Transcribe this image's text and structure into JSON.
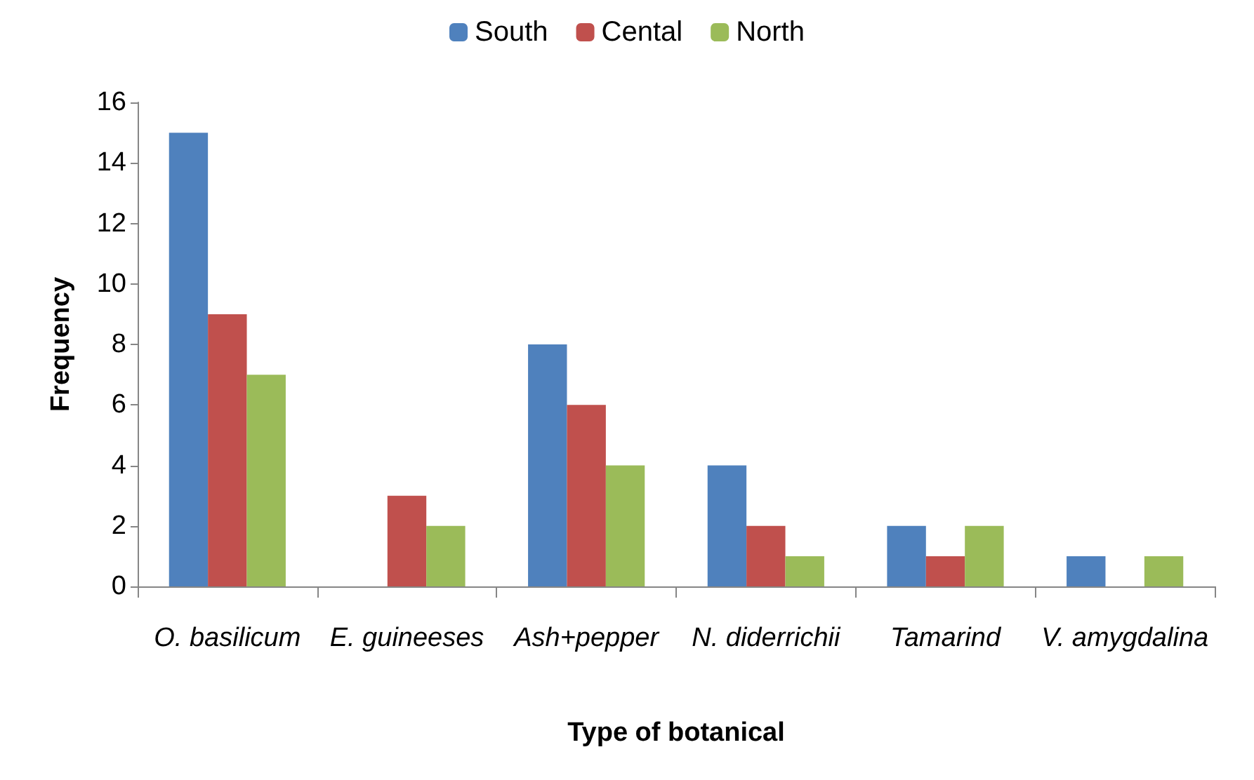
{
  "chart_data": {
    "type": "bar",
    "xlabel": "Type of botanical",
    "ylabel": "Frequency",
    "categories": [
      "O. basilicum",
      "E. guineeses",
      "Ash+pepper",
      "N. diderrichii",
      "Tamarind",
      "V. amygdalina"
    ],
    "series": [
      {
        "name": "South",
        "color": "#4f81bd",
        "values": [
          15,
          0,
          8,
          4,
          2,
          1
        ]
      },
      {
        "name": "Cental",
        "color": "#c0504d",
        "values": [
          9,
          3,
          6,
          2,
          1,
          0
        ]
      },
      {
        "name": "North",
        "color": "#9bbb59",
        "values": [
          7,
          2,
          4,
          1,
          2,
          1
        ]
      }
    ],
    "ylim": [
      0,
      16
    ],
    "yticks": [
      0,
      2,
      4,
      6,
      8,
      10,
      12,
      14,
      16
    ],
    "legend": "top"
  }
}
